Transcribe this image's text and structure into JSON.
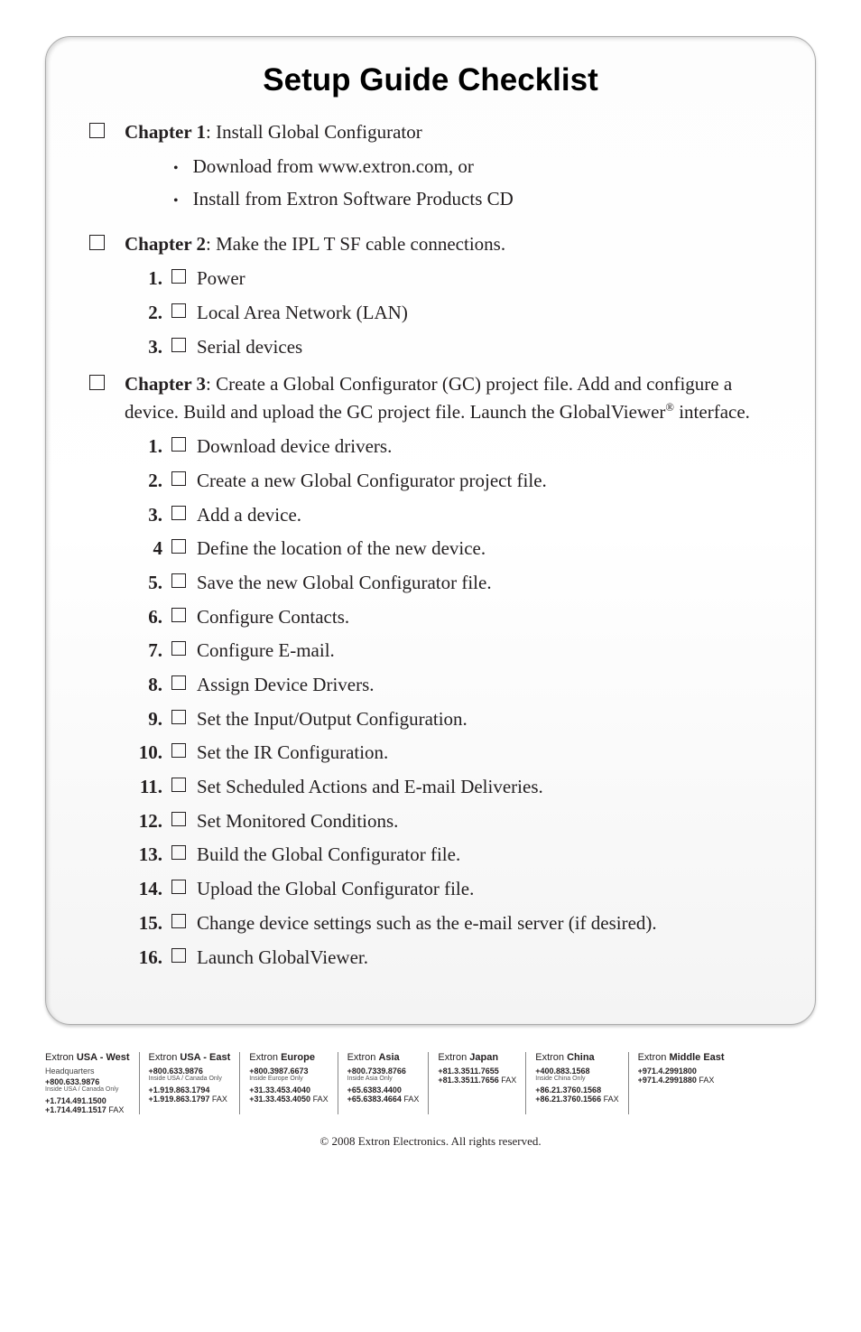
{
  "title": "Setup Guide Checklist",
  "chapters": [
    {
      "heading_prefix": "Chapter 1",
      "heading_rest": ": Install Global Configurator",
      "bullets": [
        "Download from www.extron.com, or",
        "Install from Extron Software Products CD"
      ],
      "items": []
    },
    {
      "heading_prefix": "Chapter 2",
      "heading_rest": ": Make the IPL T SF cable connections.",
      "bullets": [],
      "items": [
        {
          "num": "1.",
          "text": "Power"
        },
        {
          "num": "2.",
          "text": "Local Area Network (LAN)"
        },
        {
          "num": "3.",
          "text": "Serial devices"
        }
      ]
    },
    {
      "heading_prefix": "Chapter 3",
      "heading_rest": ": Create a Global Configurator (GC) project file. Add and configure a device.  Build and upload the GC project file.  Launch the GlobalViewer",
      "heading_sup": "®",
      "heading_tail": " interface.",
      "bullets": [],
      "items": [
        {
          "num": "1.",
          "text": "Download device drivers."
        },
        {
          "num": "2.",
          "text": "Create a new Global Configurator project file."
        },
        {
          "num": "3.",
          "text": "Add a device."
        },
        {
          "num": "4",
          "text": "Define the location of the new device."
        },
        {
          "num": "5.",
          "text": "Save the new Global Configurator file."
        },
        {
          "num": "6.",
          "text": "Configure Contacts."
        },
        {
          "num": "7.",
          "text": "Configure E-mail."
        },
        {
          "num": "8.",
          "text": "Assign Device Drivers."
        },
        {
          "num": "9.",
          "text": "Set the Input/Output Configuration."
        },
        {
          "num": "10.",
          "text": "Set the IR Configuration."
        },
        {
          "num": "11.",
          "text": "Set Scheduled Actions and E-mail Deliveries."
        },
        {
          "num": "12.",
          "text": "Set Monitored Conditions."
        },
        {
          "num": "13.",
          "text": "Build the Global Configurator file."
        },
        {
          "num": "14.",
          "text": "Upload the Global Configurator file."
        },
        {
          "num": "15.",
          "text": "Change device settings such as the e-mail server (if desired)."
        },
        {
          "num": "16.",
          "text": "Launch GlobalViewer."
        }
      ]
    }
  ],
  "footer": [
    {
      "title_pre": "Extron ",
      "title_bold": "USA - West",
      "sub": "Headquarters",
      "lines": [
        {
          "phone": "+800.633.9876",
          "tiny": "Inside USA / Canada Only"
        },
        {
          "phone": "+1.714.491.1500"
        },
        {
          "fax_b": "+1.714.491.1517",
          "fax_t": " FAX"
        }
      ]
    },
    {
      "title_pre": "Extron ",
      "title_bold": "USA - East",
      "lines": [
        {
          "phone": "+800.633.9876",
          "tiny": "Inside USA / Canada Only"
        },
        {
          "phone": "+1.919.863.1794"
        },
        {
          "fax_b": "+1.919.863.1797",
          "fax_t": " FAX"
        }
      ]
    },
    {
      "title_pre": "Extron ",
      "title_bold": "Europe",
      "lines": [
        {
          "phone": "+800.3987.6673",
          "tiny": "Inside Europe Only"
        },
        {
          "phone": "+31.33.453.4040"
        },
        {
          "fax_b": "+31.33.453.4050",
          "fax_t": " FAX"
        }
      ]
    },
    {
      "title_pre": "Extron ",
      "title_bold": "Asia",
      "lines": [
        {
          "phone": "+800.7339.8766",
          "tiny": "Inside Asia Only"
        },
        {
          "phone": "+65.6383.4400"
        },
        {
          "fax_b": "+65.6383.4664",
          "fax_t": " FAX"
        }
      ]
    },
    {
      "title_pre": "Extron ",
      "title_bold": "Japan",
      "lines": [
        {
          "phone": "+81.3.3511.7655"
        },
        {
          "fax_b": "+81.3.3511.7656",
          "fax_t": " FAX"
        }
      ]
    },
    {
      "title_pre": "Extron ",
      "title_bold": "China",
      "lines": [
        {
          "phone": "+400.883.1568",
          "tiny": "Inside China Only"
        },
        {
          "phone": "+86.21.3760.1568"
        },
        {
          "fax_b": "+86.21.3760.1566",
          "fax_t": " FAX"
        }
      ]
    },
    {
      "title_pre": "Extron ",
      "title_bold": "Middle East",
      "lines": [
        {
          "phone": "+971.4.2991800"
        },
        {
          "fax_b": "+971.4.2991880",
          "fax_t": " FAX"
        }
      ]
    }
  ],
  "copyright": "© 2008  Extron Electronics.  All rights reserved."
}
